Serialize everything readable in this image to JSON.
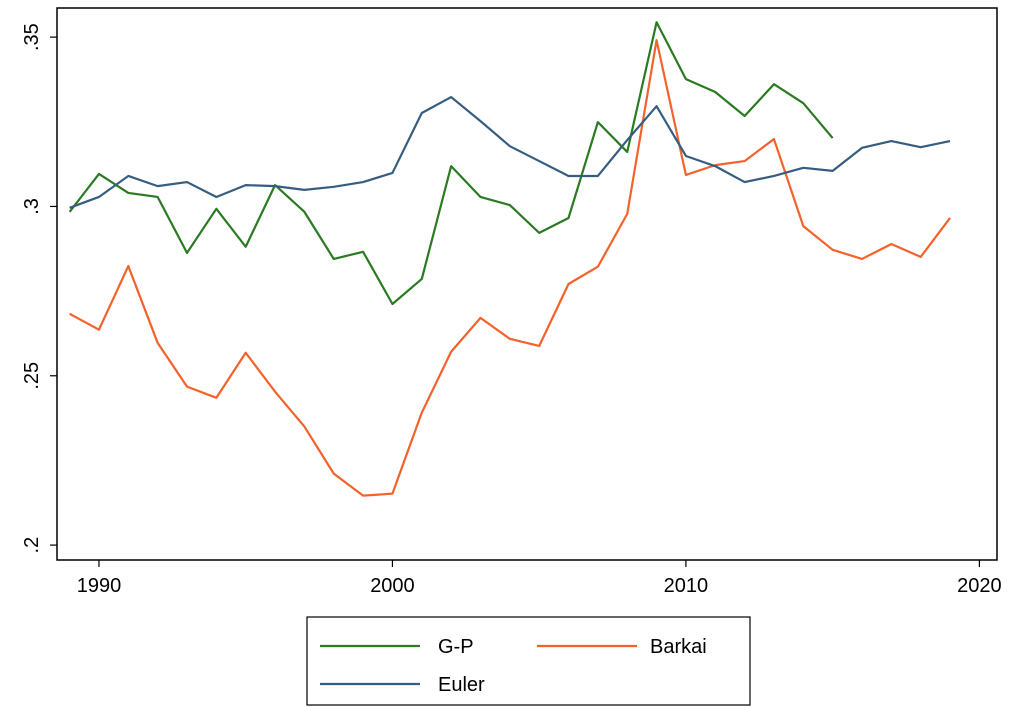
{
  "chart_data": {
    "type": "line",
    "x": [
      1989,
      1990,
      1991,
      1992,
      1993,
      1994,
      1995,
      1996,
      1997,
      1998,
      1999,
      2000,
      2001,
      2002,
      2003,
      2004,
      2005,
      2006,
      2007,
      2008,
      2009,
      2010,
      2011,
      2012,
      2013,
      2014,
      2015,
      2016,
      2017,
      2018,
      2019
    ],
    "series": [
      {
        "name": "G-P",
        "color": "#2a7a22",
        "values": [
          0.2984,
          0.3096,
          0.304,
          0.3028,
          0.2863,
          0.2993,
          0.2881,
          0.3063,
          0.2984,
          0.2845,
          0.2866,
          0.2712,
          0.2786,
          0.3119,
          0.3028,
          0.3004,
          0.2922,
          0.2966,
          0.3249,
          0.3161,
          0.3544,
          0.3376,
          0.3338,
          0.3267,
          0.3361,
          0.3305,
          0.3202,
          null,
          null,
          null,
          null
        ]
      },
      {
        "name": "Barkai",
        "color": "#f4622c",
        "values": [
          0.2683,
          0.2636,
          0.2824,
          0.2597,
          0.2468,
          0.2435,
          0.2568,
          0.2453,
          0.235,
          0.2211,
          0.2146,
          0.2152,
          0.2391,
          0.2571,
          0.2671,
          0.2609,
          0.2588,
          0.2771,
          0.2822,
          0.2978,
          0.3491,
          0.3093,
          0.3122,
          0.3134,
          0.3199,
          0.2942,
          0.2872,
          0.2845,
          0.2889,
          0.2851,
          0.2966
        ]
      },
      {
        "name": "Euler",
        "color": "#365d80",
        "values": [
          0.2996,
          0.3028,
          0.309,
          0.306,
          0.3072,
          0.3028,
          0.3063,
          0.306,
          0.3049,
          0.3058,
          0.3072,
          0.3099,
          0.3276,
          0.3323,
          0.3252,
          0.3178,
          0.3134,
          0.309,
          0.309,
          0.3196,
          0.3296,
          0.3149,
          0.3119,
          0.3072,
          0.309,
          0.3114,
          0.3105,
          0.3173,
          0.3193,
          0.3175,
          0.3193
        ]
      }
    ],
    "xlim": [
      1988.57,
      2020.6
    ],
    "xticks": [
      1990,
      2000,
      2010,
      2020
    ],
    "ylim": [
      0.1956,
      0.3586
    ],
    "yticks": [
      {
        "value": 0.2,
        "label": ".2"
      },
      {
        "value": 0.25,
        "label": ".25"
      },
      {
        "value": 0.3,
        "label": ".3"
      },
      {
        "value": 0.35,
        "label": ".35"
      }
    ],
    "grid": false
  }
}
